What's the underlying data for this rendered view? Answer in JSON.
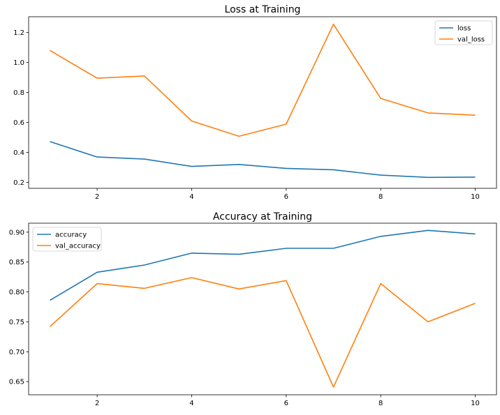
{
  "chart_data": [
    {
      "type": "line",
      "title": "Loss at Training",
      "xlabel": "",
      "ylabel": "",
      "xlim": [
        0.55,
        10.45
      ],
      "ylim": [
        0.16,
        1.305
      ],
      "xticks": [
        2,
        4,
        6,
        8,
        10
      ],
      "yticks": [
        0.2,
        0.4,
        0.6,
        0.8,
        1.0,
        1.2
      ],
      "ytick_labels": [
        "0.2",
        "0.4",
        "0.6",
        "0.8",
        "1.0",
        "1.2"
      ],
      "grid": false,
      "legend_position": "top-right",
      "x": [
        1,
        2,
        3,
        4,
        5,
        6,
        7,
        8,
        9,
        10
      ],
      "series": [
        {
          "name": "loss",
          "color": "#1f77b4",
          "values": [
            0.472,
            0.369,
            0.355,
            0.306,
            0.319,
            0.293,
            0.284,
            0.248,
            0.233,
            0.235
          ]
        },
        {
          "name": "val_loss",
          "color": "#ff7f0e",
          "values": [
            1.08,
            0.895,
            0.91,
            0.609,
            0.507,
            0.588,
            1.255,
            0.76,
            0.663,
            0.648
          ]
        }
      ]
    },
    {
      "type": "line",
      "title": "Accuracy at Training",
      "xlabel": "",
      "ylabel": "",
      "xlim": [
        0.55,
        10.45
      ],
      "ylim": [
        0.628,
        0.915
      ],
      "xticks": [
        2,
        4,
        6,
        8,
        10
      ],
      "yticks": [
        0.65,
        0.7,
        0.75,
        0.8,
        0.85,
        0.9
      ],
      "ytick_labels": [
        "0.65",
        "0.70",
        "0.75",
        "0.80",
        "0.85",
        "0.90"
      ],
      "grid": false,
      "legend_position": "top-left",
      "x": [
        1,
        2,
        3,
        4,
        5,
        6,
        7,
        8,
        9,
        10
      ],
      "series": [
        {
          "name": "accuracy",
          "color": "#1f77b4",
          "values": [
            0.786,
            0.833,
            0.845,
            0.865,
            0.863,
            0.873,
            0.873,
            0.893,
            0.903,
            0.897
          ]
        },
        {
          "name": "val_accuracy",
          "color": "#ff7f0e",
          "values": [
            0.742,
            0.814,
            0.806,
            0.824,
            0.805,
            0.819,
            0.641,
            0.814,
            0.75,
            0.781
          ]
        }
      ]
    }
  ]
}
